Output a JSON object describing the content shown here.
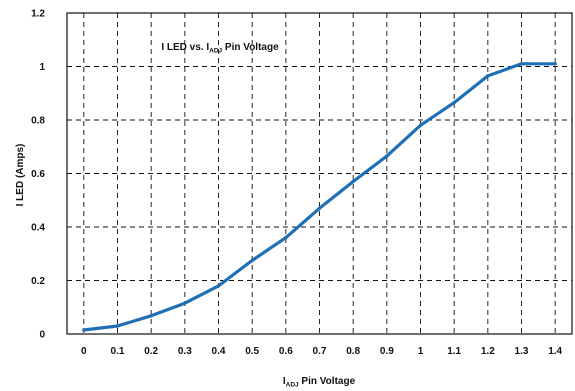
{
  "chart_data": {
    "type": "line",
    "title": {
      "prefix": "I LED vs. I",
      "sub": "ADJ",
      "suffix": " Pin Voltage"
    },
    "xlabel": {
      "prefix": "I",
      "sub": "ADJ",
      "suffix": " Pin Voltage"
    },
    "ylabel": "I LED (Amps)",
    "xlim": [
      -0.05,
      1.45
    ],
    "ylim": [
      0,
      1.2
    ],
    "x_ticks": [
      "0",
      "0.1",
      "0.2",
      "0.3",
      "0.4",
      "0.5",
      "0.6",
      "0.7",
      "0.8",
      "0.9",
      "1",
      "1.1",
      "1.2",
      "1.3",
      "1.4"
    ],
    "y_ticks": [
      "0",
      "0.2",
      "0.4",
      "0.6",
      "0.8",
      "1",
      "1.2"
    ],
    "grid": true,
    "series_color": "#1f6fb5",
    "series": [
      {
        "x": [
          0,
          0.1,
          0.2,
          0.3,
          0.4,
          0.5,
          0.6,
          0.7,
          0.8,
          0.9,
          1.0,
          1.1,
          1.2,
          1.3,
          1.4
        ],
        "y": [
          0.015,
          0.03,
          0.068,
          0.115,
          0.18,
          0.275,
          0.36,
          0.47,
          0.57,
          0.665,
          0.78,
          0.865,
          0.965,
          1.01,
          1.01
        ]
      }
    ]
  }
}
